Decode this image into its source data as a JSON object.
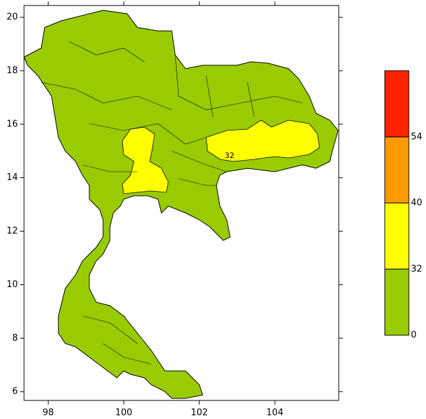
{
  "map": {
    "xlim": [
      97.36,
      105.69
    ],
    "ylim": [
      5.67,
      20.44
    ],
    "xticks": [
      98,
      100,
      102,
      104
    ],
    "yticks": [
      6,
      8,
      10,
      12,
      14,
      16,
      18,
      20
    ],
    "contour_label": 32,
    "legend": {
      "levels": [
        0,
        32,
        40,
        54
      ],
      "colors": [
        "#99cc00",
        "#ffff00",
        "#ff9900",
        "#ff2200"
      ]
    }
  }
}
